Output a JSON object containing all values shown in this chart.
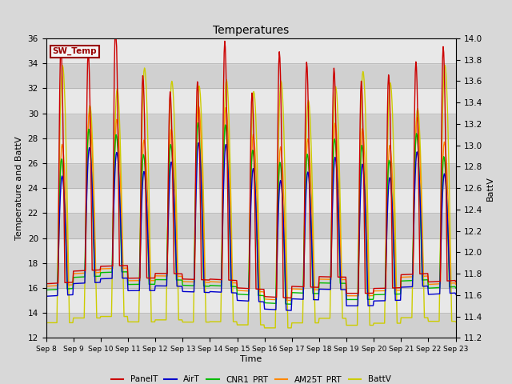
{
  "title": "Temperatures",
  "xlabel": "Time",
  "ylabel_left": "Temperature and BattV",
  "ylabel_right": "BattV",
  "ylim_left": [
    12,
    36
  ],
  "ylim_right": [
    11.2,
    14.0
  ],
  "yticks_left": [
    12,
    14,
    16,
    18,
    20,
    22,
    24,
    26,
    28,
    30,
    32,
    34,
    36
  ],
  "yticks_right": [
    11.2,
    11.4,
    11.6,
    11.8,
    12.0,
    12.2,
    12.4,
    12.6,
    12.8,
    13.0,
    13.2,
    13.4,
    13.6,
    13.8,
    14.0
  ],
  "xtick_labels": [
    "Sep 8",
    "Sep 9",
    "Sep 10",
    "Sep 11",
    "Sep 12",
    "Sep 13",
    "Sep 14",
    "Sep 15",
    "Sep 16",
    "Sep 17",
    "Sep 18",
    "Sep 19",
    "Sep 20",
    "Sep 21",
    "Sep 22",
    "Sep 23"
  ],
  "series_colors": {
    "PanelT": "#cc0000",
    "AirT": "#0000cc",
    "CNR1_PRT": "#00bb00",
    "AM25T_PRT": "#ff8800",
    "BattV": "#cccc00"
  },
  "bg_color": "#d8d8d8",
  "plot_bg_color": "#e8e8e8",
  "band_colors": [
    "#d0d0d0",
    "#e8e8e8"
  ],
  "legend_box_text": "SW_Temp",
  "legend_box_facecolor": "#f5f5f5",
  "legend_box_edgecolor": "#990000",
  "legend_box_textcolor": "#990000"
}
